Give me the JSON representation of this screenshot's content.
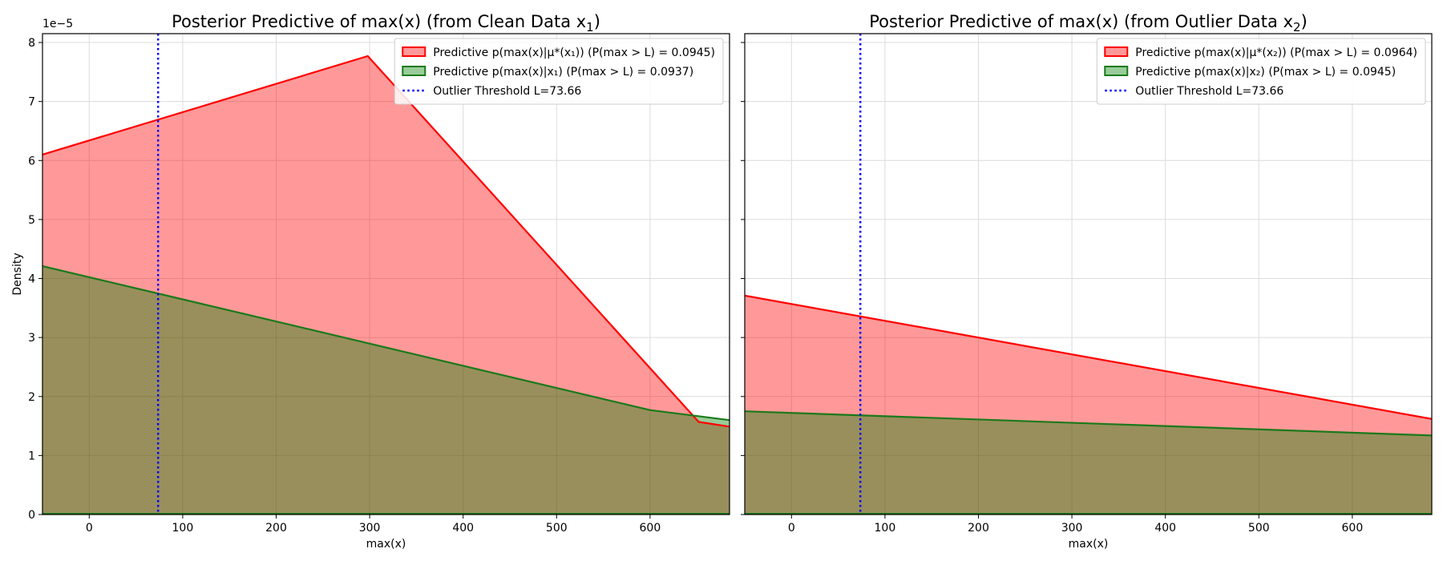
{
  "colors": {
    "red_fill": "#ff0000",
    "red_line": "#ff0000",
    "green_fill": "#008000",
    "green_line": "#1a7a1a",
    "threshold": "#0000ff",
    "grid": "#dcdcdc"
  },
  "chart_data": [
    {
      "type": "area",
      "title": "Posterior Predictive of max(x) (from Clean Data x",
      "title_subscript": "1",
      "title_suffix": ")",
      "xlabel": "max(x)",
      "ylabel": "Density",
      "y_offset_label": "1e−5",
      "xlim": [
        -50,
        685
      ],
      "ylim": [
        0,
        8.15e-05
      ],
      "xticks": [
        0,
        100,
        200,
        300,
        400,
        500,
        600
      ],
      "yticks": [
        0,
        1e-05,
        2e-05,
        3e-05,
        4e-05,
        5e-05,
        6e-05,
        7e-05,
        8e-05
      ],
      "ytick_labels": [
        "0",
        "1",
        "2",
        "3",
        "4",
        "5",
        "6",
        "7",
        "8"
      ],
      "grid": true,
      "legend_position": "top-right",
      "threshold": {
        "name": "Outlier Threshold L=73.66",
        "x": 73.66
      },
      "series": [
        {
          "name": "Predictive p(max(x)|μ*(x₁)) (P(max > L) = 0.0945)",
          "color": "#ff0000",
          "x": [
            -50,
            298,
            652,
            685
          ],
          "y": [
            6.1e-05,
            7.77e-05,
            1.57e-05,
            1.49e-05
          ]
        },
        {
          "name": "Predictive p(max(x)|x₁) (P(max > L) = 0.0937)",
          "color": "#008000",
          "x": [
            -50,
            600,
            685
          ],
          "y": [
            4.21e-05,
            1.77e-05,
            1.6e-05
          ]
        }
      ]
    },
    {
      "type": "area",
      "title": "Posterior Predictive of max(x) (from Outlier Data x",
      "title_subscript": "2",
      "title_suffix": ")",
      "xlabel": "max(x)",
      "ylabel": "",
      "y_offset_label": "",
      "xlim": [
        -50,
        685
      ],
      "ylim": [
        0,
        8.15e-05
      ],
      "xticks": [
        0,
        100,
        200,
        300,
        400,
        500,
        600
      ],
      "yticks": [
        0,
        1e-05,
        2e-05,
        3e-05,
        4e-05,
        5e-05,
        6e-05,
        7e-05,
        8e-05
      ],
      "ytick_labels": [],
      "grid": true,
      "legend_position": "top-right",
      "threshold": {
        "name": "Outlier Threshold L=73.66",
        "x": 73.66
      },
      "series": [
        {
          "name": "Predictive p(max(x)|μ*(x₂)) (P(max > L) = 0.0964)",
          "color": "#ff0000",
          "x": [
            -50,
            685
          ],
          "y": [
            3.71e-05,
            1.62e-05
          ]
        },
        {
          "name": "Predictive p(max(x)|x₂) (P(max > L) = 0.0945)",
          "color": "#008000",
          "x": [
            -50,
            685
          ],
          "y": [
            1.75e-05,
            1.34e-05
          ]
        }
      ]
    }
  ]
}
